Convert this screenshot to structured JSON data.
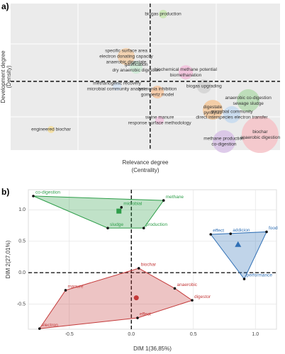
{
  "chart_data": [
    {
      "type": "bubble",
      "panel": "a)",
      "xlabel": [
        "Relevance degree",
        "(Centrality)"
      ],
      "ylabel": [
        "Development degree",
        "(Density)"
      ],
      "xlim": [
        0,
        100
      ],
      "ylim": [
        0,
        100
      ],
      "vline": 51.8,
      "hline": 46.9,
      "themes": [
        {
          "labels": [
            "biogas production"
          ],
          "x": 56.6,
          "y": 92.8,
          "size": 6,
          "color": "#c8e6b0"
        },
        {
          "labels": [
            "specific surface area",
            "electron donating capacity",
            "anaerobic digestate"
          ],
          "x": 42.9,
          "y": 63.8,
          "size": 12,
          "color": "#f5cfa8"
        },
        {
          "labels": [
            "gasification",
            "dry anaerobic digestion"
          ],
          "x": 46.6,
          "y": 56.5,
          "size": 9,
          "color": "#cdebd5"
        },
        {
          "labels": [
            "biochemical methane potential",
            "biomethanation"
          ],
          "x": 65,
          "y": 53.1,
          "size": 10,
          "color": "#f3c0dc"
        },
        {
          "labels": [
            "methanogenic recovery",
            "microbial community analysis"
          ],
          "x": 39.5,
          "y": 43.5,
          "size": 6,
          "color": "#d6e4f5"
        },
        {
          "labels": [
            "biogas upgrading"
          ],
          "x": 71.8,
          "y": 43.5,
          "size": 10,
          "color": "#d4d4d4"
        },
        {
          "labels": [
            "ammonia inhibition",
            "gompertz model"
          ],
          "x": 54.5,
          "y": 39.6,
          "size": 9,
          "color": "#f7c7a0"
        },
        {
          "labels": [
            "anaerobic co-digestion",
            "sewage sludge"
          ],
          "x": 88.2,
          "y": 33.8,
          "size": 16,
          "color": "#b6dcb2"
        },
        {
          "labels": [
            "digestate",
            "pyrolysis"
          ],
          "x": 75,
          "y": 27.5,
          "size": 14,
          "color": "#f5c89a"
        },
        {
          "labels": [
            "microbial community",
            "direct interspecies electron transfer"
          ],
          "x": 82.1,
          "y": 24.2,
          "size": 12,
          "color": "#c6dbf0"
        },
        {
          "labels": [
            "swine manure",
            "response surface methodology"
          ],
          "x": 55.3,
          "y": 20.3,
          "size": 6,
          "color": "#f3c6e0"
        },
        {
          "labels": [
            "biochar",
            "anaerobic digestion"
          ],
          "x": 92.6,
          "y": 10.6,
          "size": 26,
          "color": "#f6c3c8"
        },
        {
          "labels": [
            "methane production",
            "co-digestion"
          ],
          "x": 79.2,
          "y": 5.8,
          "size": 16,
          "color": "#d8c2e6"
        },
        {
          "labels": [
            "engineered biochar"
          ],
          "x": 15,
          "y": 14,
          "size": 5,
          "color": "#f7df9a"
        }
      ]
    },
    {
      "type": "scatter",
      "panel": "b)",
      "xlabel": "DIM 1(36,85%)",
      "ylabel": "DIM 2(27,01%)",
      "xlim": [
        -0.83,
        1.17
      ],
      "ylim": [
        -0.9,
        1.32
      ],
      "xticks": [
        -0.5,
        {
          "value": 0,
          "label": "0.0"
        },
        0.5,
        {
          "value": 1,
          "label": "1.0"
        }
      ],
      "yticks": [
        -0.5,
        {
          "value": 0,
          "label": "0.0"
        },
        0.5,
        {
          "value": 1,
          "label": "1.0"
        }
      ],
      "grid": true,
      "series": [
        {
          "color": "#2e9e4a",
          "labels": [
            "co-digestion",
            "methane",
            "production",
            "sludge",
            "microbial"
          ],
          "x": [
            -0.79,
            0.26,
            0.1,
            -0.19,
            -0.08
          ],
          "y": [
            1.22,
            1.15,
            0.71,
            0.71,
            1.04
          ],
          "centroid": {
            "x": -0.1,
            "y": 0.98,
            "shape": "square"
          }
        },
        {
          "color": "#c43a3a",
          "labels": [
            "biochar",
            "anaerobic",
            "digestor",
            "effect",
            "electron",
            "manure"
          ],
          "x": [
            0.06,
            0.35,
            0.49,
            0.05,
            -0.74,
            -0.53
          ],
          "y": [
            0.07,
            -0.25,
            -0.44,
            -0.72,
            -0.89,
            -0.28
          ],
          "centroid": {
            "x": 0.04,
            "y": -0.4,
            "shape": "circle"
          }
        },
        {
          "color": "#2f6fb5",
          "labels": [
            "addicion",
            "food",
            "performance",
            "effect"
          ],
          "x": [
            0.8,
            1.09,
            0.91,
            0.64
          ],
          "y": [
            0.62,
            0.65,
            -0.1,
            0.61
          ],
          "centroid": {
            "x": 0.86,
            "y": 0.45,
            "shape": "triangle"
          }
        }
      ]
    }
  ]
}
